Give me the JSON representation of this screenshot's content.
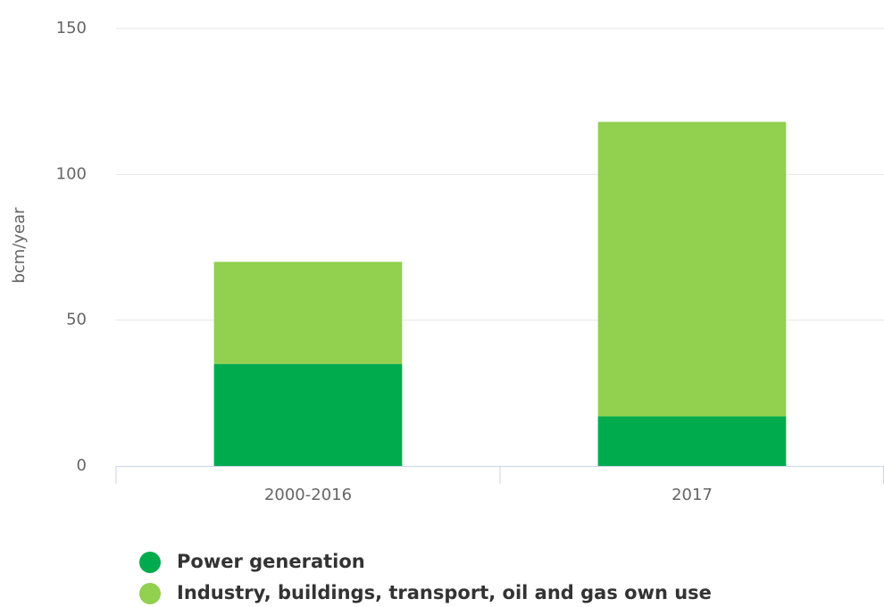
{
  "chart_data": {
    "type": "stacked_bar",
    "y_axis_label": "bcm/year",
    "categories": [
      "2000-2016",
      "2017"
    ],
    "series": [
      {
        "name": "Power generation",
        "color": "#00ab4e",
        "values": [
          35,
          17
        ]
      },
      {
        "name": "Industry, buildings, transport, oil and gas own use",
        "color": "#92d050",
        "values": [
          35,
          101
        ]
      }
    ],
    "ylim": [
      0,
      150
    ],
    "yticks": [
      0,
      50,
      100,
      150
    ],
    "grid": true,
    "legend": "bottom"
  }
}
